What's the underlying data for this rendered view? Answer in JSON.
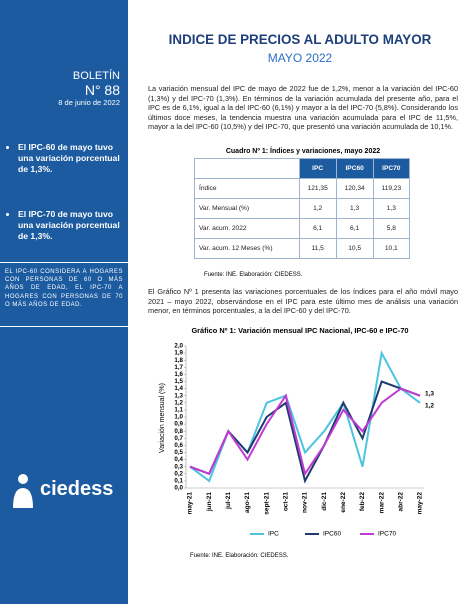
{
  "sidebar": {
    "label": "BOLETÍN",
    "number": "N° 88",
    "date": "8 de junio de 2022",
    "bullets": [
      "El IPC-60 de mayo tuvo una variación porcentual de 1,3%.",
      "El IPC-70 de mayo tuvo una variación porcentual de 1,3%."
    ],
    "note": "EL IPC-60 CONSIDERA A HOGARES CON PERSONAS DE 60 O MÁS AÑOS DE EDAD, EL IPC-70 A HOGARES CON PERSONAS DE 70 O MÁS AÑOS DE EDAD.",
    "logo": "ciedess"
  },
  "header": {
    "title": "INDICE DE PRECIOS AL ADULTO MAYOR",
    "subtitle": "MAYO 2022"
  },
  "paragraph1": "La variación mensual del IPC de mayo de 2022 fue de 1,2%, menor a la variación del IPC-60 (1,3%) y del IPC-70 (1,3%). En términos de la variación acumulada del presente año, para el IPC es de 6,1%, igual a la del IPC-60 (6,1%) y mayor a la del IPC-70 (5,8%). Considerando los últimos doce meses, la tendencia muestra una variación acumulada para el IPC de 11,5%, mayor a la del IPC-60 (10,5%) y del IPC-70, que presentó una variación acumulada de 10,1%.",
  "table": {
    "caption": "Cuadro Nº 1: Índices y variaciones, mayo 2022",
    "columns": [
      "IPC",
      "IPC60",
      "IPC70"
    ],
    "rows": [
      [
        "Índice",
        "121,35",
        "120,34",
        "119,23"
      ],
      [
        "Var. Mensual (%)",
        "1,2",
        "1,3",
        "1,3"
      ],
      [
        "Var. acum. 2022",
        "6,1",
        "6,1",
        "5,8"
      ],
      [
        "Var. acum. 12 Meses (%)",
        "11,5",
        "10,5",
        "10,1"
      ]
    ],
    "source": "Fuente: INE. Elaboración: CIEDESS."
  },
  "paragraph2": "El Gráfico Nº 1 presenta las variaciones porcentuales de los índices para el año móvil mayo 2021 – mayo 2022, observándose en el IPC para este último mes de análisis una variación menor, en términos porcentuales, a la del IPC-60 y del IPC-70.",
  "chart_data": {
    "type": "line",
    "title": "Gráfico Nº 1: Variación mensual IPC Nacional, IPC-60 e IPC-70",
    "y_label": "Variación mensual (%)",
    "categories": [
      "may-21",
      "jun-21",
      "jul-21",
      "ago-21",
      "sept-21",
      "oct-21",
      "nov-21",
      "dic-21",
      "ene-22",
      "feb-22",
      "mar-22",
      "abr-22",
      "may-22"
    ],
    "series": [
      {
        "name": "IPC",
        "color": "#4ec3e0",
        "values": [
          0.3,
          0.1,
          0.8,
          0.5,
          1.2,
          1.3,
          0.5,
          0.8,
          1.2,
          0.3,
          1.9,
          1.4,
          1.2
        ],
        "value_labels": [
          null,
          null,
          null,
          null,
          null,
          null,
          null,
          null,
          null,
          null,
          null,
          null,
          "1,2"
        ]
      },
      {
        "name": "IPC60",
        "color": "#1f3a6e",
        "values": [
          0.3,
          0.2,
          0.8,
          0.5,
          1.0,
          1.2,
          0.1,
          0.6,
          1.2,
          0.7,
          1.5,
          1.4,
          1.3
        ],
        "value_labels": [
          null,
          null,
          null,
          null,
          null,
          null,
          null,
          null,
          null,
          null,
          null,
          null,
          "1,3"
        ]
      },
      {
        "name": "IPC70",
        "color": "#c03bd6",
        "values": [
          0.3,
          0.2,
          0.8,
          0.4,
          0.9,
          1.3,
          0.2,
          0.6,
          1.1,
          0.8,
          1.2,
          1.4,
          1.3
        ]
      }
    ],
    "ylim": [
      0,
      2
    ],
    "yticks": [
      {
        "value": 0,
        "label": "0,0"
      },
      {
        "value": 0.1,
        "label": "0,1"
      },
      {
        "value": 0.2,
        "label": "0,2"
      },
      {
        "value": 0.3,
        "label": "0,3"
      },
      {
        "value": 0.4,
        "label": "0,4"
      },
      {
        "value": 0.5,
        "label": "0,5"
      },
      {
        "value": 0.6,
        "label": "0,6"
      },
      {
        "value": 0.7,
        "label": "0,7"
      },
      {
        "value": 0.8,
        "label": "0,8"
      },
      {
        "value": 0.9,
        "label": "0,9"
      },
      {
        "value": 1,
        "label": "1,0"
      },
      {
        "value": 1.1,
        "label": "1,1"
      },
      {
        "value": 1.2,
        "label": "1,2"
      },
      {
        "value": 1.3,
        "label": "1,3"
      },
      {
        "value": 1.4,
        "label": "1,4"
      },
      {
        "value": 1.5,
        "label": "1,5"
      },
      {
        "value": 1.6,
        "label": "1,6"
      },
      {
        "value": 1.7,
        "label": "1,7"
      },
      {
        "value": 1.8,
        "label": "1,8"
      },
      {
        "value": 1.9,
        "label": "1,9"
      },
      {
        "value": 2,
        "label": "2,0"
      }
    ],
    "source": "Fuente: INE. Elaboración: CIEDESS."
  }
}
